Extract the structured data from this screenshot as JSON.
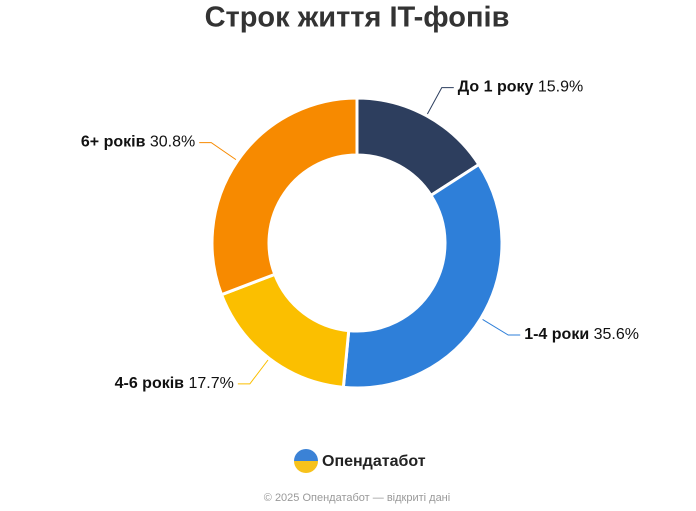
{
  "chart_data": {
    "type": "donut",
    "title": "Строк життя IT-фопів",
    "categories": [
      "До 1 року",
      "1-4 роки",
      "4-6 років",
      "6+ років"
    ],
    "values": [
      15.9,
      35.6,
      17.7,
      30.8
    ],
    "value_labels": [
      "15.9%",
      "35.6%",
      "17.7%",
      "30.8%"
    ],
    "colors": [
      "#2d3e5e",
      "#2e7fd9",
      "#fbbf00",
      "#f78a00"
    ]
  },
  "branding": {
    "logo": "Опендатабот",
    "footer": "© 2025 Опендатабот — відкриті дані"
  }
}
